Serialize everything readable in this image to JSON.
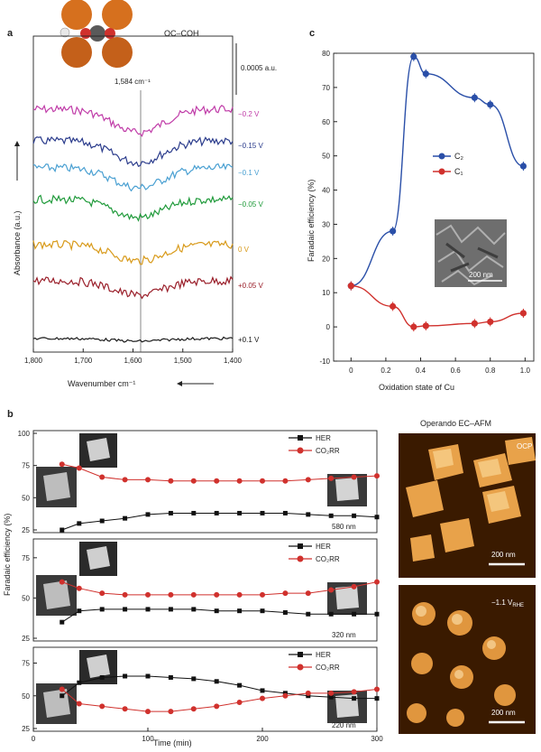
{
  "chart_data": [
    {
      "panel": "a",
      "type": "line",
      "title": "OC–COH",
      "peak_label": "1,584 cm⁻¹",
      "scale_bar_label": "0.0005 a.u.",
      "xlabel": "Wavenumber cm⁻¹",
      "ylabel": "Absorbance (a.u.)",
      "xlim": [
        1800,
        1400
      ],
      "x_ticks": [
        "1,800",
        "1,700",
        "1,600",
        "1,500",
        "1,400"
      ],
      "series": [
        {
          "name": "−0.2 V",
          "color": "#c03ca8"
        },
        {
          "name": "−0.15 V",
          "color": "#2b3c8c"
        },
        {
          "name": "−0.1 V",
          "color": "#4aa0d2"
        },
        {
          "name": "−0.05 V",
          "color": "#1f9a3a"
        },
        {
          "name": "0 V",
          "color": "#d89a1a"
        },
        {
          "name": "+0.05 V",
          "color": "#9a1f2a"
        },
        {
          "name": "+0.1 V",
          "color": "#1a1a1a"
        }
      ]
    },
    {
      "panel": "c",
      "type": "line",
      "xlabel": "Oxidation state of Cu",
      "ylabel": "Faradaic efficiency (%)",
      "xlim": [
        -0.1,
        1.05
      ],
      "ylim": [
        -10,
        80
      ],
      "x_ticks": [
        "0",
        "0.2",
        "0.4",
        "0.6",
        "0.8",
        "1.0"
      ],
      "y_ticks": [
        "-10",
        "0",
        "10",
        "20",
        "30",
        "40",
        "50",
        "60",
        "70",
        "80"
      ],
      "inset_label": "200 nm",
      "legend_position": "center-right",
      "series": [
        {
          "name": "C₂",
          "color": "#2a4fa8",
          "x": [
            0,
            0.24,
            0.36,
            0.43,
            0.71,
            0.8,
            0.99
          ],
          "y": [
            12,
            28,
            79,
            74,
            67,
            65,
            47
          ]
        },
        {
          "name": "C₁",
          "color": "#d0312d",
          "x": [
            0,
            0.24,
            0.36,
            0.43,
            0.71,
            0.8,
            0.99
          ],
          "y": [
            12,
            6,
            0,
            0.3,
            1,
            1.5,
            4
          ]
        }
      ]
    },
    {
      "panel": "b",
      "type": "line",
      "xlabel": "Time (min)",
      "ylabel": "Faradaic efficiency (%)",
      "xlim": [
        0,
        300
      ],
      "x_ticks": [
        "0",
        "100",
        "200",
        "300"
      ],
      "subplots": [
        {
          "size_label": "580 nm",
          "y_ticks": [
            "25",
            "50",
            "75",
            "100"
          ],
          "ylim": [
            25,
            100
          ],
          "x": [
            25,
            40,
            60,
            80,
            100,
            120,
            140,
            160,
            180,
            200,
            220,
            240,
            260,
            280,
            300
          ],
          "series": [
            {
              "name": "HER",
              "color": "#111111",
              "values": [
                25,
                30,
                32,
                34,
                37,
                38,
                38,
                38,
                38,
                38,
                38,
                37,
                36,
                36,
                35
              ]
            },
            {
              "name": "CO₂RR",
              "color": "#d0312d",
              "values": [
                76,
                73,
                66,
                64,
                64,
                63,
                63,
                63,
                63,
                63,
                63,
                64,
                65,
                66,
                67
              ]
            }
          ]
        },
        {
          "size_label": "320 nm",
          "y_ticks": [
            "25",
            "50",
            "75"
          ],
          "ylim": [
            25,
            85
          ],
          "x": [
            25,
            40,
            60,
            80,
            100,
            120,
            140,
            160,
            180,
            200,
            220,
            240,
            260,
            280,
            300
          ],
          "series": [
            {
              "name": "HER",
              "color": "#111111",
              "values": [
                35,
                42,
                43,
                43,
                43,
                43,
                43,
                42,
                42,
                42,
                41,
                40,
                40,
                40,
                40
              ]
            },
            {
              "name": "CO₂RR",
              "color": "#d0312d",
              "values": [
                60,
                56,
                53,
                52,
                52,
                52,
                52,
                52,
                52,
                52,
                53,
                53,
                55,
                57,
                60
              ]
            }
          ]
        },
        {
          "size_label": "220 nm",
          "y_ticks": [
            "25",
            "50",
            "75"
          ],
          "ylim": [
            25,
            85
          ],
          "x": [
            25,
            40,
            60,
            80,
            100,
            120,
            140,
            160,
            180,
            200,
            220,
            240,
            260,
            280,
            300
          ],
          "series": [
            {
              "name": "HER",
              "color": "#111111",
              "values": [
                50,
                60,
                64,
                65,
                65,
                64,
                63,
                61,
                58,
                54,
                52,
                50,
                49,
                48,
                48
              ]
            },
            {
              "name": "CO₂RR",
              "color": "#d0312d",
              "values": [
                55,
                44,
                42,
                40,
                38,
                38,
                40,
                42,
                45,
                48,
                50,
                52,
                52,
                53,
                55
              ]
            }
          ]
        }
      ]
    }
  ],
  "panel_labels": {
    "a": "a",
    "b": "b",
    "c": "c"
  },
  "afm": {
    "title": "Operando EC–AFM",
    "top_label": "OCP",
    "bottom_label_main": "−1.1 V",
    "bottom_label_sub": "RHE",
    "scale_label_top": "200 nm",
    "scale_label_bottom": "200 nm"
  },
  "colors": {
    "afm_dark": "#3a1a00",
    "afm_light": "#f5c070",
    "molecule": "#d6701e"
  }
}
